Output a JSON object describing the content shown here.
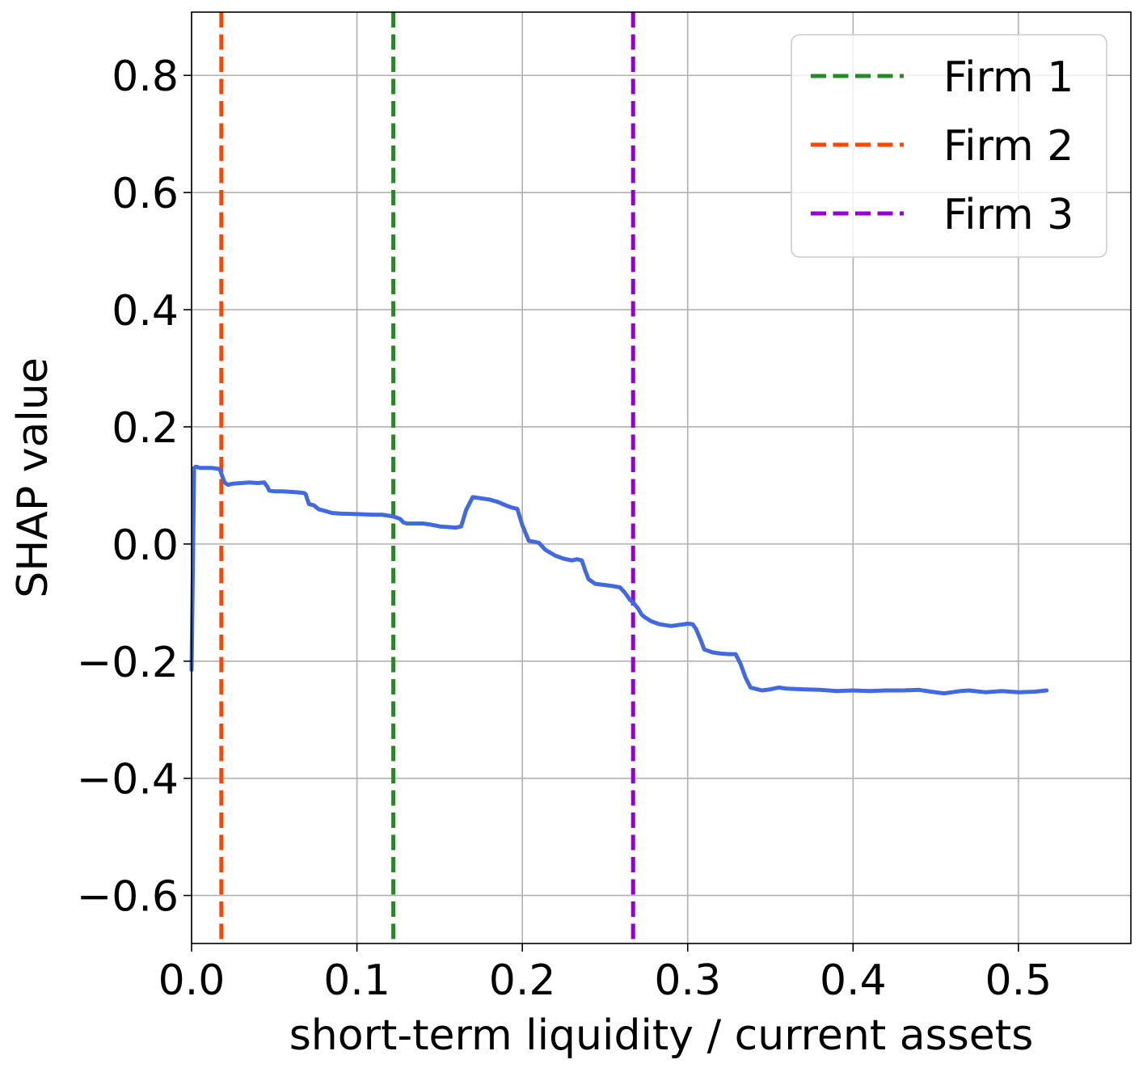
{
  "chart_data": {
    "type": "line",
    "xlabel": "short-term liquidity / current assets",
    "ylabel": "SHAP value",
    "xlim": [
      0.0,
      0.568
    ],
    "ylim": [
      -0.682,
      0.908
    ],
    "xticks": [
      0.0,
      0.1,
      0.2,
      0.3,
      0.4,
      0.5
    ],
    "xtick_labels": [
      "0.0",
      "0.1",
      "0.2",
      "0.3",
      "0.4",
      "0.5"
    ],
    "yticks": [
      -0.6,
      -0.4,
      -0.2,
      0.0,
      0.2,
      0.4,
      0.6,
      0.8
    ],
    "ytick_labels": [
      "−0.6",
      "−0.4",
      "−0.2",
      "0.0",
      "0.2",
      "0.4",
      "0.6",
      "0.8"
    ],
    "grid": true,
    "legend_position": "top-right",
    "series": [
      {
        "color": "#4169e1",
        "x": [
          0.0,
          0.0015,
          0.0025,
          0.005,
          0.012,
          0.017,
          0.019,
          0.02,
          0.022,
          0.025,
          0.03,
          0.035,
          0.04,
          0.044,
          0.046,
          0.047,
          0.05,
          0.055,
          0.06,
          0.065,
          0.068,
          0.069,
          0.07,
          0.071,
          0.074,
          0.077,
          0.08,
          0.085,
          0.09,
          0.1,
          0.11,
          0.115,
          0.12,
          0.123,
          0.126,
          0.128,
          0.13,
          0.14,
          0.145,
          0.15,
          0.155,
          0.16,
          0.163,
          0.166,
          0.17,
          0.175,
          0.18,
          0.185,
          0.19,
          0.194,
          0.197,
          0.2,
          0.204,
          0.207,
          0.21,
          0.214,
          0.22,
          0.225,
          0.23,
          0.233,
          0.236,
          0.238,
          0.24,
          0.244,
          0.25,
          0.255,
          0.259,
          0.262,
          0.265,
          0.267,
          0.27,
          0.272,
          0.274,
          0.278,
          0.283,
          0.29,
          0.295,
          0.298,
          0.3,
          0.303,
          0.305,
          0.308,
          0.31,
          0.315,
          0.32,
          0.325,
          0.329,
          0.332,
          0.335,
          0.338,
          0.345,
          0.35,
          0.355,
          0.36,
          0.37,
          0.38,
          0.39,
          0.4,
          0.41,
          0.42,
          0.43,
          0.44,
          0.447,
          0.455,
          0.46,
          0.465,
          0.47,
          0.48,
          0.49,
          0.5,
          0.51,
          0.517
        ],
        "y": [
          -0.215,
          0.13,
          0.132,
          0.13,
          0.13,
          0.128,
          0.112,
          0.105,
          0.101,
          0.103,
          0.104,
          0.105,
          0.104,
          0.105,
          0.097,
          0.091,
          0.09,
          0.09,
          0.089,
          0.088,
          0.087,
          0.085,
          0.076,
          0.068,
          0.066,
          0.059,
          0.057,
          0.053,
          0.052,
          0.051,
          0.05,
          0.05,
          0.048,
          0.046,
          0.043,
          0.037,
          0.035,
          0.035,
          0.033,
          0.03,
          0.029,
          0.028,
          0.03,
          0.058,
          0.08,
          0.078,
          0.076,
          0.072,
          0.066,
          0.062,
          0.06,
          0.032,
          0.005,
          0.004,
          0.002,
          -0.01,
          -0.02,
          -0.025,
          -0.028,
          -0.026,
          -0.028,
          -0.045,
          -0.06,
          -0.068,
          -0.07,
          -0.072,
          -0.074,
          -0.083,
          -0.095,
          -0.1,
          -0.11,
          -0.12,
          -0.125,
          -0.132,
          -0.137,
          -0.14,
          -0.138,
          -0.137,
          -0.136,
          -0.137,
          -0.145,
          -0.165,
          -0.18,
          -0.185,
          -0.187,
          -0.188,
          -0.188,
          -0.205,
          -0.228,
          -0.245,
          -0.25,
          -0.248,
          -0.245,
          -0.247,
          -0.248,
          -0.249,
          -0.251,
          -0.25,
          -0.251,
          -0.25,
          -0.25,
          -0.249,
          -0.252,
          -0.255,
          -0.253,
          -0.251,
          -0.25,
          -0.253,
          -0.251,
          -0.253,
          -0.252,
          -0.25
        ]
      }
    ],
    "reference_lines": [
      {
        "name": "Firm 1",
        "x": 0.122,
        "color": "#228b22"
      },
      {
        "name": "Firm 2",
        "x": 0.018,
        "color": "#ff4500"
      },
      {
        "name": "Firm 3",
        "x": 0.267,
        "color": "#9400d3"
      }
    ],
    "legend_order": [
      "Firm 1",
      "Firm 2",
      "Firm 3"
    ]
  }
}
